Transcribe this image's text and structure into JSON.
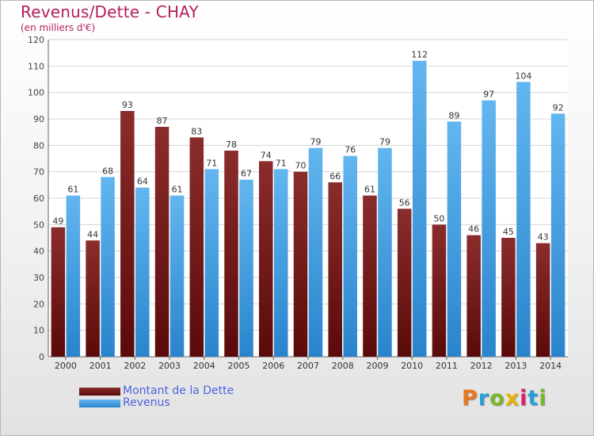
{
  "title": "Revenus/Dette - CHAY",
  "subtitle": "(en milliers d'€)",
  "logo": {
    "text": "Proxiti",
    "colors": [
      "#e87722",
      "#2a9fd8",
      "#79b829",
      "#e8b400",
      "#d8246e",
      "#2a9fd8",
      "#79b829"
    ]
  },
  "colors": {
    "title": "#b41e5c",
    "debt": "#7b1d1d",
    "revenue": "#3d9ee8",
    "legend_text": "#4b63e0",
    "grid": "#d4d4d4"
  },
  "chart_data": {
    "type": "bar",
    "title": "Revenus/Dette - CHAY",
    "subtitle": "(en milliers d'€)",
    "categories": [
      "2000",
      "2001",
      "2002",
      "2003",
      "2004",
      "2005",
      "2006",
      "2007",
      "2008",
      "2009",
      "2010",
      "2011",
      "2012",
      "2013",
      "2014"
    ],
    "series": [
      {
        "name": "Montant de la Dette",
        "values": [
          49,
          44,
          93,
          87,
          83,
          78,
          74,
          70,
          66,
          61,
          56,
          50,
          46,
          45,
          43
        ]
      },
      {
        "name": "Revenus",
        "values": [
          61,
          68,
          64,
          61,
          71,
          67,
          71,
          79,
          76,
          79,
          112,
          89,
          97,
          104,
          92
        ]
      }
    ],
    "ylim": [
      0,
      120
    ],
    "yticks": [
      0,
      10,
      20,
      30,
      40,
      50,
      60,
      70,
      80,
      90,
      100,
      110,
      120
    ],
    "grid": true,
    "legend_position": "bottom-left"
  }
}
